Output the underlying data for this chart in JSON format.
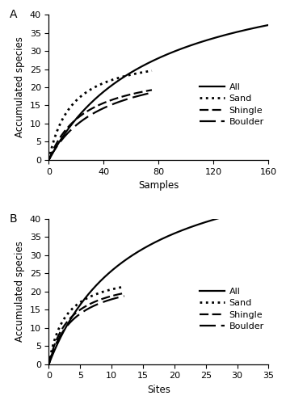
{
  "panel_A": {
    "label": "A",
    "xlabel": "Samples",
    "ylabel": "Accumulated species",
    "xlim": [
      0,
      160
    ],
    "ylim": [
      0,
      40
    ],
    "xticks": [
      0,
      40,
      80,
      120,
      160
    ],
    "yticks": [
      0,
      5,
      10,
      15,
      20,
      25,
      30,
      35,
      40
    ],
    "curves": {
      "All": {
        "x_end": 160,
        "a": 55.0,
        "b": 0.013
      },
      "Sand": {
        "x_end": 75,
        "a": 30.0,
        "b": 0.06
      },
      "Shingle": {
        "x_end": 75,
        "a": 26.0,
        "b": 0.038
      },
      "Boulder": {
        "x_end": 75,
        "a": 28.0,
        "b": 0.026
      }
    }
  },
  "panel_B": {
    "label": "B",
    "xlabel": "Sites",
    "ylabel": "Accumulated species",
    "xlim": [
      0,
      35
    ],
    "ylim": [
      0,
      40
    ],
    "xticks": [
      0,
      5,
      10,
      15,
      20,
      25,
      30,
      35
    ],
    "yticks": [
      0,
      5,
      10,
      15,
      20,
      25,
      30,
      35,
      40
    ],
    "curves": {
      "All": {
        "x_end": 35,
        "a": 60.0,
        "b": 0.075
      },
      "Sand": {
        "x_end": 12,
        "a": 26.0,
        "b": 0.38
      },
      "Shingle": {
        "x_end": 12,
        "a": 25.0,
        "b": 0.3
      },
      "Boulder": {
        "x_end": 12,
        "a": 25.0,
        "b": 0.25
      }
    }
  },
  "legend_labels": [
    "All",
    "Sand",
    "Shingle",
    "Boulder"
  ],
  "line_color": "#000000",
  "background_color": "#ffffff",
  "fontsize": 8.5,
  "legend_fontsize": 8,
  "label_fontsize": 10
}
